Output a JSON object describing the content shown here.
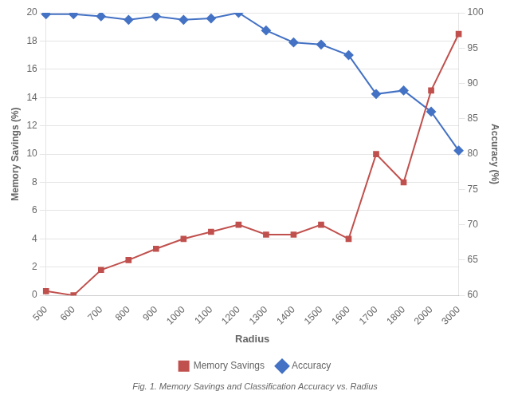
{
  "chart_data": {
    "type": "line",
    "categories": [
      "500",
      "600",
      "700",
      "800",
      "900",
      "1000",
      "1100",
      "1200",
      "1300",
      "1400",
      "1500",
      "1600",
      "1700",
      "1800",
      "2000",
      "3000"
    ],
    "series": [
      {
        "name": "Memory Savings",
        "color": "#C0504D",
        "marker": "square",
        "values": [
          0.3,
          0.0,
          1.8,
          2.5,
          3.3,
          4.0,
          4.5,
          5.0,
          4.3,
          4.3,
          5.0,
          4.0,
          10.0,
          8.0,
          14.5,
          18.5
        ]
      },
      {
        "name": "Accuracy",
        "color": "#4472C4",
        "marker": "diamond",
        "axis": "y2",
        "values": [
          99.8,
          99.8,
          99.5,
          99.0,
          99.5,
          99.0,
          99.2,
          100.0,
          97.5,
          95.8,
          95.5,
          94.0,
          88.5,
          89.0,
          86.0,
          80.5
        ]
      }
    ],
    "xlabel": "Radius",
    "ylabel": "Memory Savings (%)",
    "y2label": "Accuracy (%)",
    "ylim": [
      0,
      20
    ],
    "yticks": [
      0,
      2,
      4,
      6,
      8,
      10,
      12,
      14,
      16,
      18,
      20
    ],
    "y2lim": [
      60,
      100
    ],
    "y2ticks": [
      60,
      65,
      70,
      75,
      80,
      85,
      90,
      95,
      100
    ],
    "grid": true,
    "legend": "bottom",
    "annotations": [
      "Fig. 1. Memory Savings and Classification Accuracy vs. Radius"
    ]
  }
}
